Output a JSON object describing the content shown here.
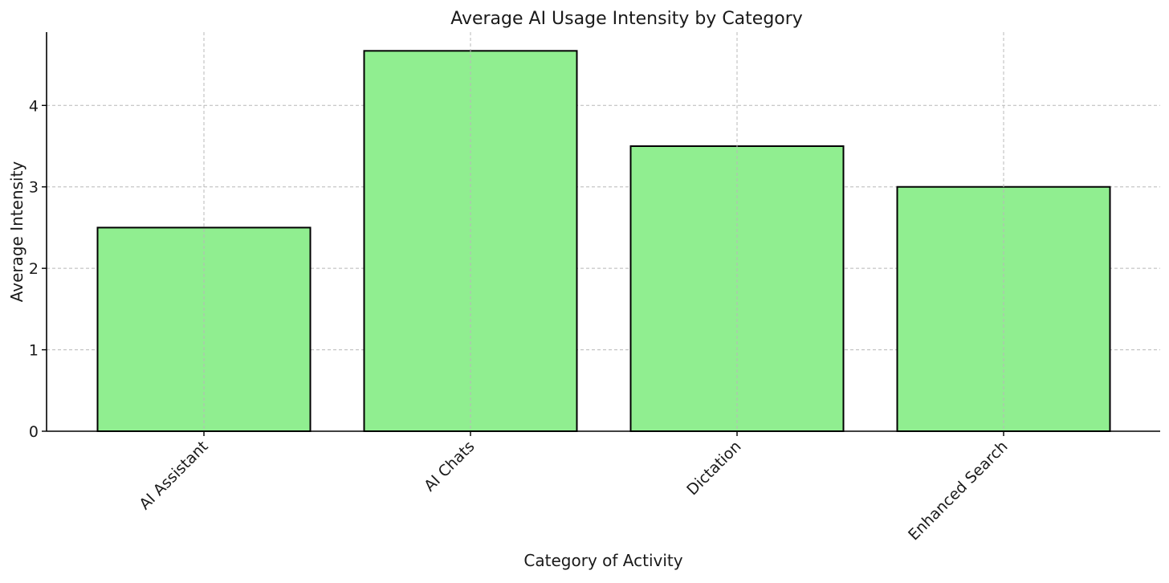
{
  "chart_data": {
    "type": "bar",
    "title": "Average AI Usage Intensity by Category",
    "xlabel": "Category of Activity",
    "ylabel": "Average Intensity",
    "categories": [
      "AI Assistant",
      "AI Chats",
      "Dictation",
      "Enhanced Search"
    ],
    "values": [
      2.5,
      4.67,
      3.5,
      3.0
    ],
    "ylim": [
      0,
      4.9
    ],
    "yticks": [
      0,
      1,
      2,
      3,
      4
    ],
    "grid": true,
    "legend": false
  },
  "colors": {
    "bar_fill": "#90ee90",
    "bar_edge": "#000000",
    "grid": "#b8b8b8"
  }
}
